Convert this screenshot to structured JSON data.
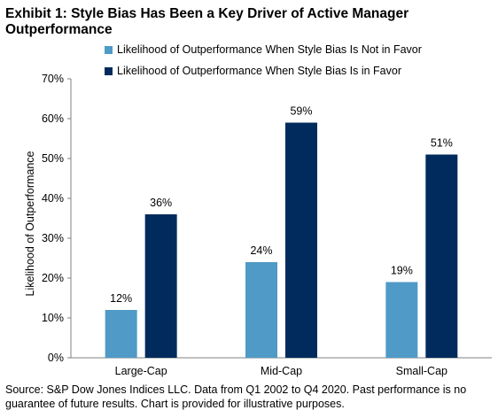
{
  "header": {
    "title": "Exhibit 1: Style Bias Has Been a Key Driver of Active Manager Outperformance"
  },
  "footnote": "Source: S&P Dow Jones Indices LLC.  Data from Q1 2002 to Q4 2020.  Past performance is no guarantee of future results.  Chart is provided for illustrative purposes.",
  "chart_data": {
    "type": "bar",
    "categories": [
      "Large-Cap",
      "Mid-Cap",
      "Small-Cap"
    ],
    "series": [
      {
        "name": "Likelihood of Outperformance When Style Bias Is Not in Favor",
        "values": [
          12,
          24,
          19
        ],
        "color": "#4f9ac7"
      },
      {
        "name": "Likelihood of Outperformance When Style Bias Is in Favor",
        "values": [
          36,
          59,
          51
        ],
        "color": "#002b5c"
      }
    ],
    "data_labels": [
      [
        "12%",
        "24%",
        "19%"
      ],
      [
        "36%",
        "59%",
        "51%"
      ]
    ],
    "ylabel": "Likelihood of Outperformance",
    "xlabel": "",
    "ylim": [
      0,
      70
    ],
    "yticks": [
      0,
      10,
      20,
      30,
      40,
      50,
      60,
      70
    ],
    "ytick_labels": [
      "0%",
      "10%",
      "20%",
      "30%",
      "40%",
      "50%",
      "60%",
      "70%"
    ],
    "grid": false,
    "legend_position": "top"
  }
}
